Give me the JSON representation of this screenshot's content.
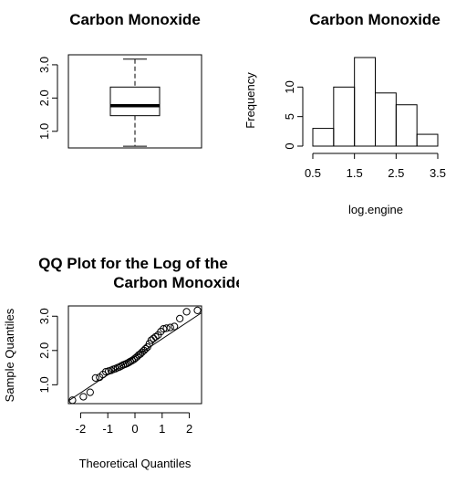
{
  "chart_data": [
    {
      "type": "box",
      "title": "Carbon Monoxide",
      "xlabel": "",
      "ylabel": "",
      "y_ticks": [
        "1.0",
        "2.0",
        "3.0"
      ],
      "y_tick_values": [
        1.0,
        2.0,
        3.0
      ],
      "ylim": [
        0.5,
        3.3
      ],
      "stats": {
        "min": 0.55,
        "q1": 1.47,
        "median": 1.77,
        "q3": 2.33,
        "max": 3.17
      }
    },
    {
      "type": "bar",
      "title": "Carbon Monoxide",
      "xlabel": "log.engine",
      "ylabel": "Frequency",
      "x_ticks": [
        "0.5",
        "1.5",
        "2.5",
        "3.5"
      ],
      "x_tick_values": [
        0.5,
        1.5,
        2.5,
        3.5
      ],
      "y_ticks": [
        "0",
        "5",
        "10"
      ],
      "y_tick_values": [
        0,
        5,
        10
      ],
      "ylim": [
        0,
        15
      ],
      "bins": [
        0.5,
        1.0,
        1.5,
        2.0,
        2.5,
        3.0,
        3.5
      ],
      "counts": [
        3,
        10,
        15,
        9,
        7,
        2
      ]
    },
    {
      "type": "scatter",
      "title_lines": [
        "QQ Plot for the Log of the",
        "Carbon Monoxide"
      ],
      "xlabel": "Theoretical Quantiles",
      "ylabel": "Sample Quantiles",
      "x_ticks": [
        "-2",
        "-1",
        "0",
        "1",
        "2"
      ],
      "x_tick_values": [
        -2,
        -1,
        0,
        1,
        2
      ],
      "y_ticks": [
        "1.0",
        "2.0",
        "3.0"
      ],
      "y_tick_values": [
        1.0,
        2.0,
        3.0
      ],
      "xlim": [
        -2.45,
        2.45
      ],
      "ylim": [
        0.45,
        3.3
      ],
      "points": [
        [
          -2.3,
          0.55
        ],
        [
          -1.9,
          0.65
        ],
        [
          -1.65,
          0.78
        ],
        [
          -1.45,
          1.2
        ],
        [
          -1.3,
          1.22
        ],
        [
          -1.18,
          1.3
        ],
        [
          -1.07,
          1.38
        ],
        [
          -0.97,
          1.4
        ],
        [
          -0.88,
          1.42
        ],
        [
          -0.8,
          1.45
        ],
        [
          -0.72,
          1.47
        ],
        [
          -0.64,
          1.5
        ],
        [
          -0.57,
          1.52
        ],
        [
          -0.5,
          1.55
        ],
        [
          -0.43,
          1.58
        ],
        [
          -0.36,
          1.6
        ],
        [
          -0.3,
          1.62
        ],
        [
          -0.23,
          1.65
        ],
        [
          -0.17,
          1.68
        ],
        [
          -0.1,
          1.71
        ],
        [
          -0.04,
          1.74
        ],
        [
          0.02,
          1.78
        ],
        [
          0.08,
          1.82
        ],
        [
          0.14,
          1.87
        ],
        [
          0.2,
          1.9
        ],
        [
          0.26,
          1.95
        ],
        [
          0.33,
          2.0
        ],
        [
          0.39,
          2.05
        ],
        [
          0.46,
          2.1
        ],
        [
          0.53,
          2.2
        ],
        [
          0.6,
          2.3
        ],
        [
          0.68,
          2.35
        ],
        [
          0.76,
          2.4
        ],
        [
          0.85,
          2.45
        ],
        [
          0.95,
          2.55
        ],
        [
          1.05,
          2.63
        ],
        [
          1.16,
          2.65
        ],
        [
          1.3,
          2.67
        ],
        [
          1.45,
          2.7
        ],
        [
          1.65,
          2.93
        ],
        [
          1.9,
          3.13
        ],
        [
          2.3,
          3.17
        ]
      ],
      "fit_line": {
        "x1": -2.45,
        "y1": 0.53,
        "x2": 2.45,
        "y2": 3.1
      }
    }
  ]
}
